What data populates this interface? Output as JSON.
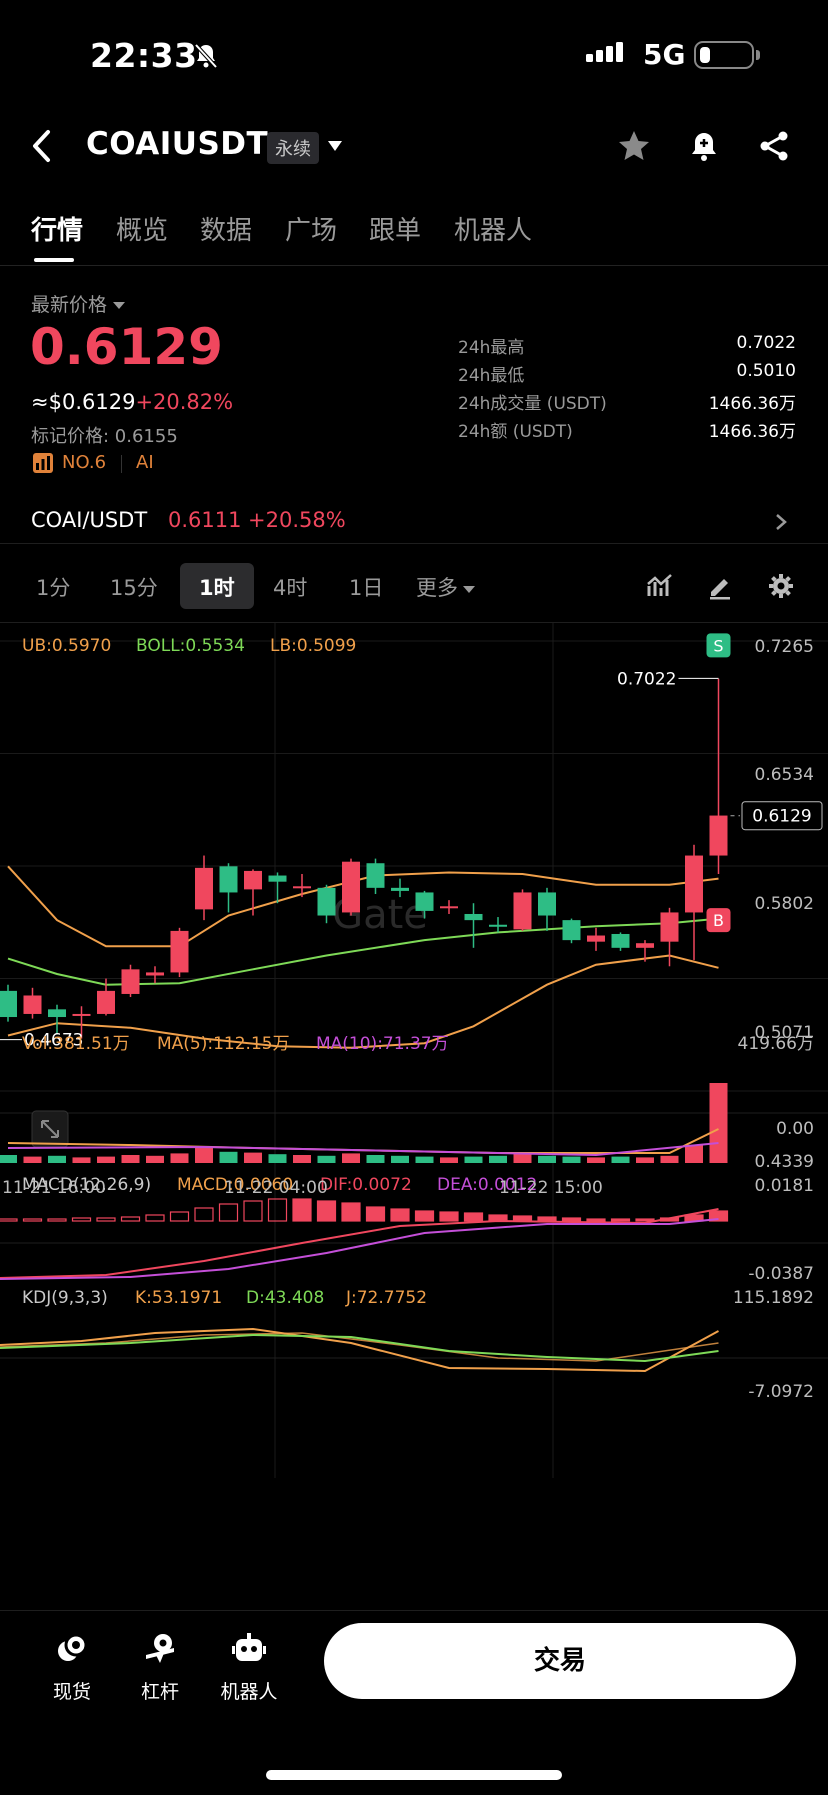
{
  "status_bar": {
    "time": "22:33",
    "network": "5G"
  },
  "header": {
    "pair": "COAIUSDT",
    "badge": "永续"
  },
  "tabs": [
    "行情",
    "概览",
    "数据",
    "广场",
    "跟单",
    "机器人"
  ],
  "price": {
    "latest_label": "最新价格",
    "last": "0.6129",
    "fiat_prefix": "≈$0.6129",
    "change": "+20.82%",
    "mark_label": "标记价格: 0.6155",
    "rank": "NO.6",
    "tag": "AI"
  },
  "stats": [
    {
      "label": "24h最高",
      "value": "0.7022"
    },
    {
      "label": "24h最低",
      "value": "0.5010"
    },
    {
      "label": "24h成交量 (USDT)",
      "value": "1466.36万"
    },
    {
      "label": "24h额 (USDT)",
      "value": "1466.36万"
    }
  ],
  "spot": {
    "pair": "COAI/USDT",
    "price": "0.6111",
    "change": "+20.58%"
  },
  "intervals": {
    "items": [
      "1分",
      "15分",
      "1时",
      "4时",
      "1日"
    ],
    "more": "更多",
    "active": "1时"
  },
  "colors": {
    "up": "#f0475e",
    "down": "#2ebd85",
    "ub": "#f0a04b",
    "boll": "#7ed957",
    "lb": "#f0a04b"
  },
  "boll_legend": {
    "ub": "UB:0.5970",
    "boll": "BOLL:0.5534",
    "lb": "LB:0.5099"
  },
  "price_axis": [
    "0.7265",
    "0.6534",
    "0.5802",
    "0.5071",
    "0.4339"
  ],
  "time_axis": [
    "11-21 16:00",
    "11-22 04:00",
    "11-22 15:00"
  ],
  "chart_marks": {
    "high_label": "0.7022",
    "low_label": "0.4673",
    "current_tag": "0.6129",
    "sell_marker": "S",
    "buy_marker": "B",
    "watermark": "Gate"
  },
  "vol_legend": {
    "vol": "Vol:381.51万",
    "ma5": "MA(5):112.15万",
    "ma10": "MA(10):71.37万",
    "top": "419.66万",
    "bottom": "0.00"
  },
  "macd_legend": {
    "name": "MACD(12,26,9)",
    "macd": "MACD:0.0060",
    "dif": "DIF:0.0072",
    "dea": "DEA:0.0012",
    "top": "0.0181",
    "bottom": "-0.0387"
  },
  "kdj_legend": {
    "name": "KDJ(9,3,3)",
    "k": "K:53.1971",
    "d": "D:43.408",
    "j": "J:72.7752",
    "top": "115.1892",
    "bottom": "-7.0972"
  },
  "bottom_nav": {
    "spot": "现货",
    "leverage": "杠杆",
    "bot": "机器人",
    "trade": "交易"
  },
  "chart_data": {
    "type": "candlestick",
    "ylim": [
      0.4339,
      0.7265
    ],
    "x_ticks": [
      "11-21 16:00",
      "11-22 04:00",
      "11-22 15:00"
    ],
    "candles": [
      [
        0.499,
        0.482,
        0.503,
        0.479
      ],
      [
        0.484,
        0.496,
        0.501,
        0.481
      ],
      [
        0.487,
        0.482,
        0.49,
        0.471
      ],
      [
        0.483,
        0.484,
        0.489,
        0.468
      ],
      [
        0.484,
        0.499,
        0.507,
        0.483
      ],
      [
        0.497,
        0.513,
        0.516,
        0.495
      ],
      [
        0.509,
        0.511,
        0.515,
        0.504
      ],
      [
        0.511,
        0.538,
        0.54,
        0.508
      ],
      [
        0.552,
        0.579,
        0.587,
        0.545
      ],
      [
        0.58,
        0.563,
        0.582,
        0.55
      ],
      [
        0.565,
        0.577,
        0.578,
        0.548
      ],
      [
        0.574,
        0.57,
        0.576,
        0.556
      ],
      [
        0.567,
        0.567,
        0.575,
        0.56
      ],
      [
        0.566,
        0.548,
        0.568,
        0.543
      ],
      [
        0.55,
        0.583,
        0.585,
        0.548
      ],
      [
        0.582,
        0.566,
        0.585,
        0.562
      ],
      [
        0.566,
        0.564,
        0.572,
        0.56
      ],
      [
        0.563,
        0.551,
        0.564,
        0.546
      ],
      [
        0.554,
        0.554,
        0.558,
        0.549
      ],
      [
        0.549,
        0.545,
        0.556,
        0.527
      ],
      [
        0.542,
        0.541,
        0.547,
        0.537
      ],
      [
        0.539,
        0.563,
        0.565,
        0.538
      ],
      [
        0.563,
        0.548,
        0.566,
        0.538
      ],
      [
        0.545,
        0.532,
        0.546,
        0.53
      ],
      [
        0.531,
        0.535,
        0.54,
        0.525
      ],
      [
        0.536,
        0.527,
        0.537,
        0.525
      ],
      [
        0.527,
        0.53,
        0.532,
        0.518
      ],
      [
        0.531,
        0.55,
        0.553,
        0.515
      ],
      [
        0.55,
        0.587,
        0.594,
        0.519
      ],
      [
        0.587,
        0.613,
        0.702,
        0.575
      ]
    ],
    "volume": [
      10,
      8,
      9,
      7,
      8,
      10,
      9,
      12,
      20,
      14,
      13,
      11,
      10,
      9,
      12,
      10,
      9,
      8,
      7,
      8,
      9,
      12,
      9,
      8,
      7,
      8,
      7,
      9,
      22,
      100
    ],
    "kdj": {
      "k": 53.1971,
      "d": 43.408,
      "j": 72.7752
    },
    "macd": {
      "macd": 0.006,
      "dif": 0.0072,
      "dea": 0.0012
    }
  }
}
